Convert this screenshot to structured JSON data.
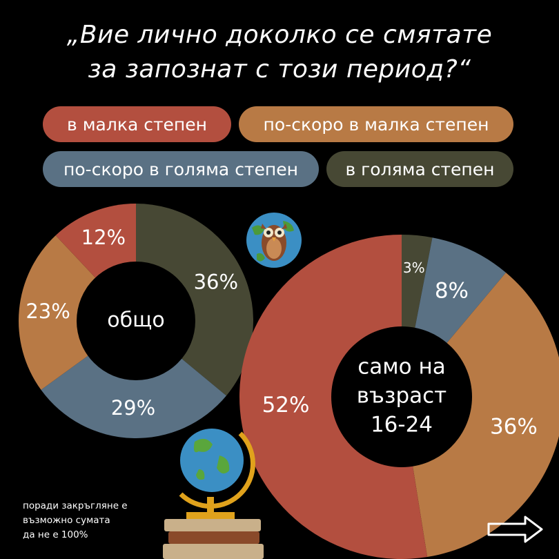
{
  "title": {
    "line1": "„Вие лично доколко се смятате",
    "line2": "за запознат с този период?“"
  },
  "legend": [
    {
      "label": "в малка степен",
      "color": "#b34f3f"
    },
    {
      "label": "по-скоро в малка степен",
      "color": "#b87a45"
    },
    {
      "label": "по-скоро в голяма степен",
      "color": "#5a7184"
    },
    {
      "label": "в голяма степен",
      "color": "#474834"
    }
  ],
  "chart_data": [
    {
      "type": "pie",
      "variant": "donut",
      "center_label": "общо",
      "categories": [
        "в малка степен",
        "по-скоро в малка степен",
        "по-скоро в голяма степен",
        "в голяма степен"
      ],
      "values": [
        12,
        23,
        29,
        36
      ],
      "labels": [
        "12%",
        "23%",
        "29%",
        "36%"
      ]
    },
    {
      "type": "pie",
      "variant": "donut",
      "center_label": [
        "само на",
        "възраст",
        "16-24"
      ],
      "categories": [
        "в малка степен",
        "по-скоро в малка степен",
        "по-скоро в голяма степен",
        "в голяма степен"
      ],
      "values": [
        52,
        36,
        8,
        3
      ],
      "labels": [
        "52%",
        "36%",
        "8%",
        "3%"
      ]
    }
  ],
  "footnote": [
    "поради закръгляне е",
    "възможно сумата",
    "да не е 100%"
  ],
  "icons": [
    "owl-globe-icon",
    "globe-on-books-icon",
    "next-arrow-icon"
  ]
}
